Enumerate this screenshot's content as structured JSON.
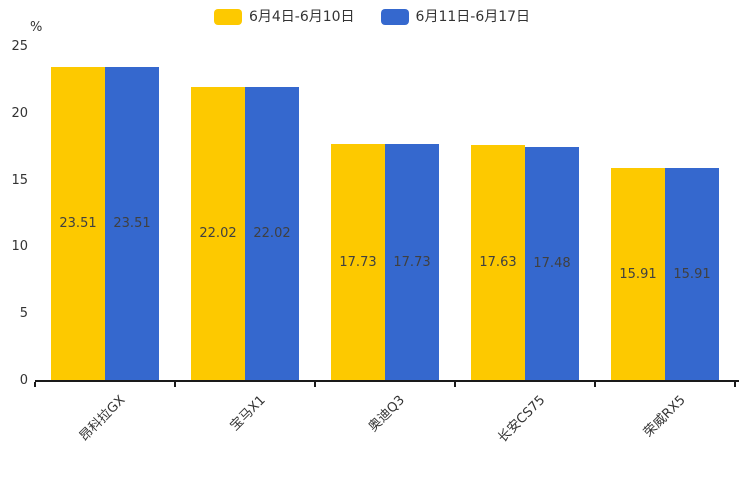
{
  "chart_data": {
    "type": "bar",
    "title": "",
    "categories": [
      "昂科拉GX",
      "宝马X1",
      "奥迪Q3",
      "长安CS75",
      "荣威RX5"
    ],
    "series": [
      {
        "name": "6月4日-6月10日",
        "color": "#FDC900",
        "values": [
          23.51,
          22.02,
          17.73,
          17.63,
          15.91
        ]
      },
      {
        "name": "6月11日-6月17日",
        "color": "#3568CE",
        "values": [
          23.51,
          22.02,
          17.73,
          17.48,
          15.91
        ]
      }
    ],
    "xlabel": "",
    "ylabel": "%",
    "ylim": [
      0,
      25
    ],
    "yticks": [
      0,
      5,
      10,
      15,
      20,
      25
    ],
    "grid": false,
    "legend_position": "top-center",
    "value_labels": "inside-center",
    "x_label_rotation_deg": 45
  },
  "colors": {
    "value_label": "#404040",
    "axis": "#1a1a1a",
    "tick_text": "#333333",
    "background": "#ffffff"
  }
}
